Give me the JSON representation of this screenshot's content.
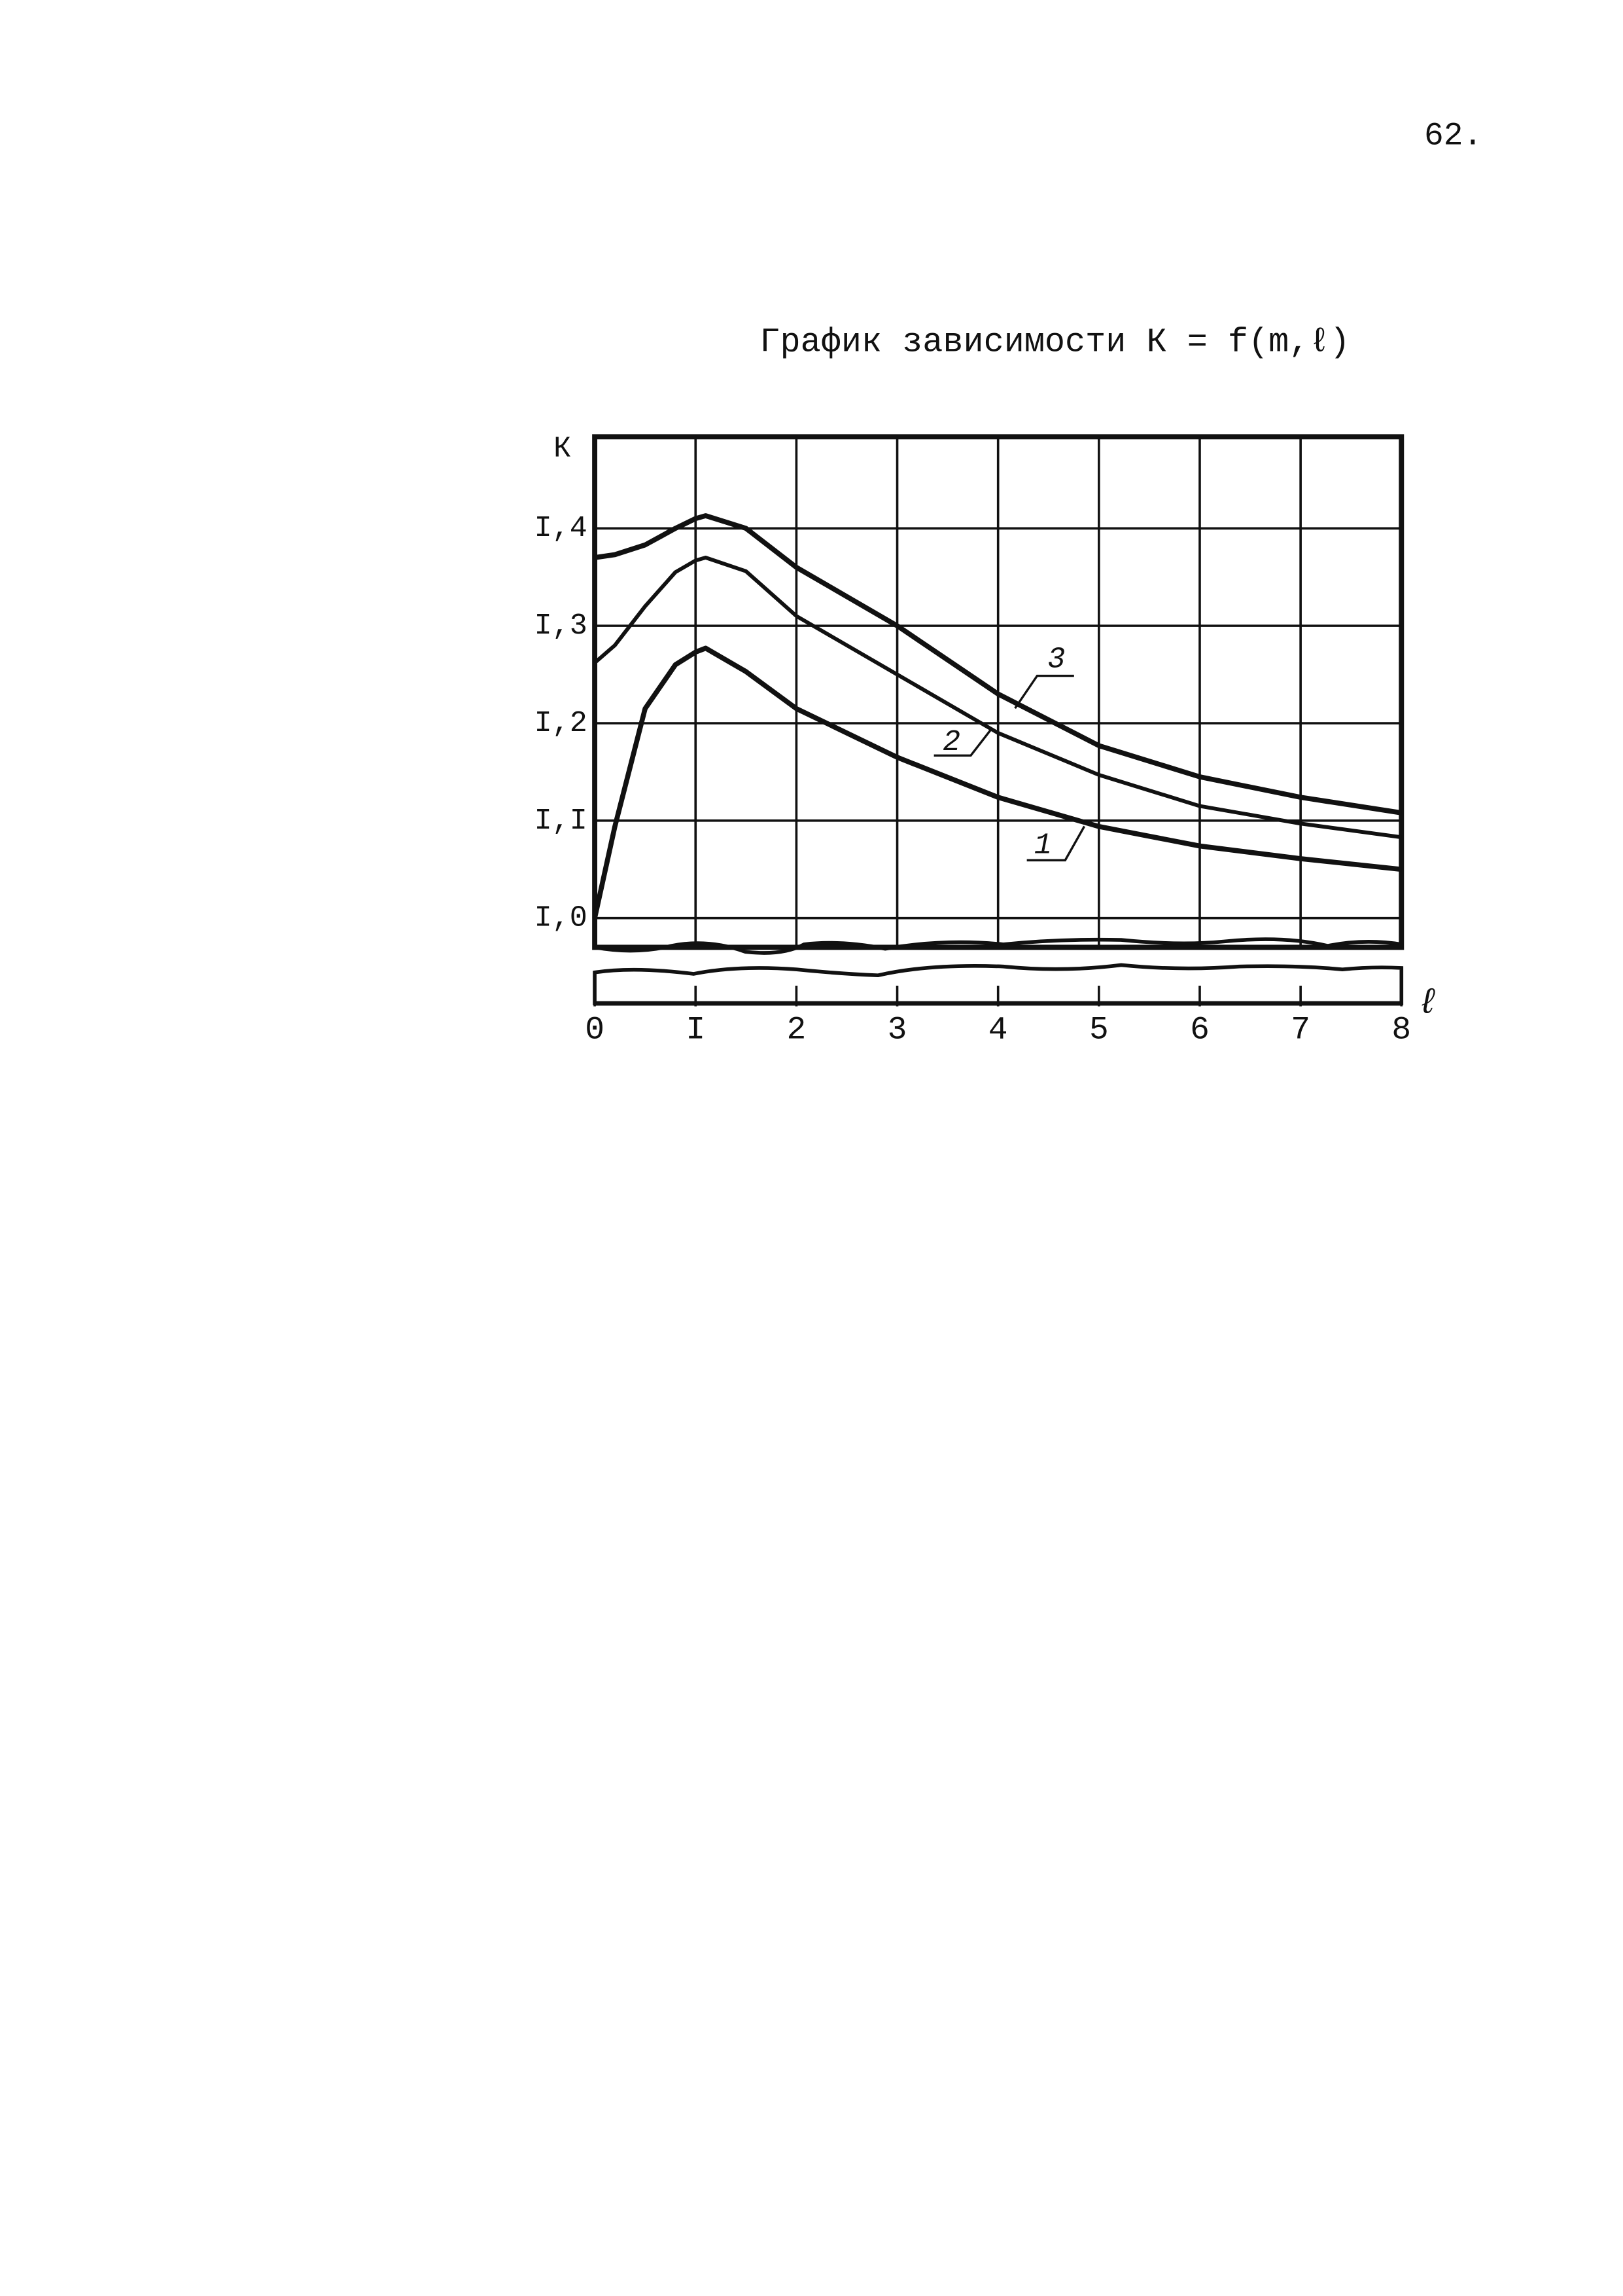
{
  "page_number": "62.",
  "chart_data": {
    "type": "line",
    "title": "График зависимости К = f(m,ℓ)",
    "y_label": "К",
    "x_label": "ℓ",
    "x": [
      0,
      0.2,
      0.5,
      0.8,
      1,
      1.1,
      1.5,
      2,
      3,
      4,
      5,
      6,
      7,
      8
    ],
    "series": [
      {
        "name": "1",
        "color": "#111111",
        "values": [
          1.0,
          1.094,
          1.215,
          1.26,
          1.273,
          1.277,
          1.253,
          1.215,
          1.165,
          1.124,
          1.094,
          1.074,
          1.061,
          1.05
        ]
      },
      {
        "name": "2",
        "color": "#111111",
        "values": [
          1.262,
          1.28,
          1.32,
          1.355,
          1.367,
          1.37,
          1.356,
          1.31,
          1.25,
          1.19,
          1.147,
          1.115,
          1.097,
          1.083
        ]
      },
      {
        "name": "3",
        "color": "#111111",
        "values": [
          1.37,
          1.373,
          1.383,
          1.4,
          1.41,
          1.413,
          1.4,
          1.36,
          1.3,
          1.23,
          1.177,
          1.145,
          1.124,
          1.108
        ]
      }
    ],
    "xlim": [
      0,
      8
    ],
    "xticks": [
      0,
      {
        "value": 1,
        "label": "I"
      },
      2,
      3,
      4,
      5,
      6,
      7,
      8
    ],
    "ylim": [
      0.97,
      1.494
    ],
    "yticks": [
      {
        "value": 1.0,
        "label": "I,0"
      },
      {
        "value": 1.1,
        "label": "I,I"
      },
      {
        "value": 1.2,
        "label": "I,2"
      },
      {
        "value": 1.3,
        "label": "I,3"
      },
      {
        "value": 1.4,
        "label": "I,4"
      }
    ],
    "grid": true
  }
}
